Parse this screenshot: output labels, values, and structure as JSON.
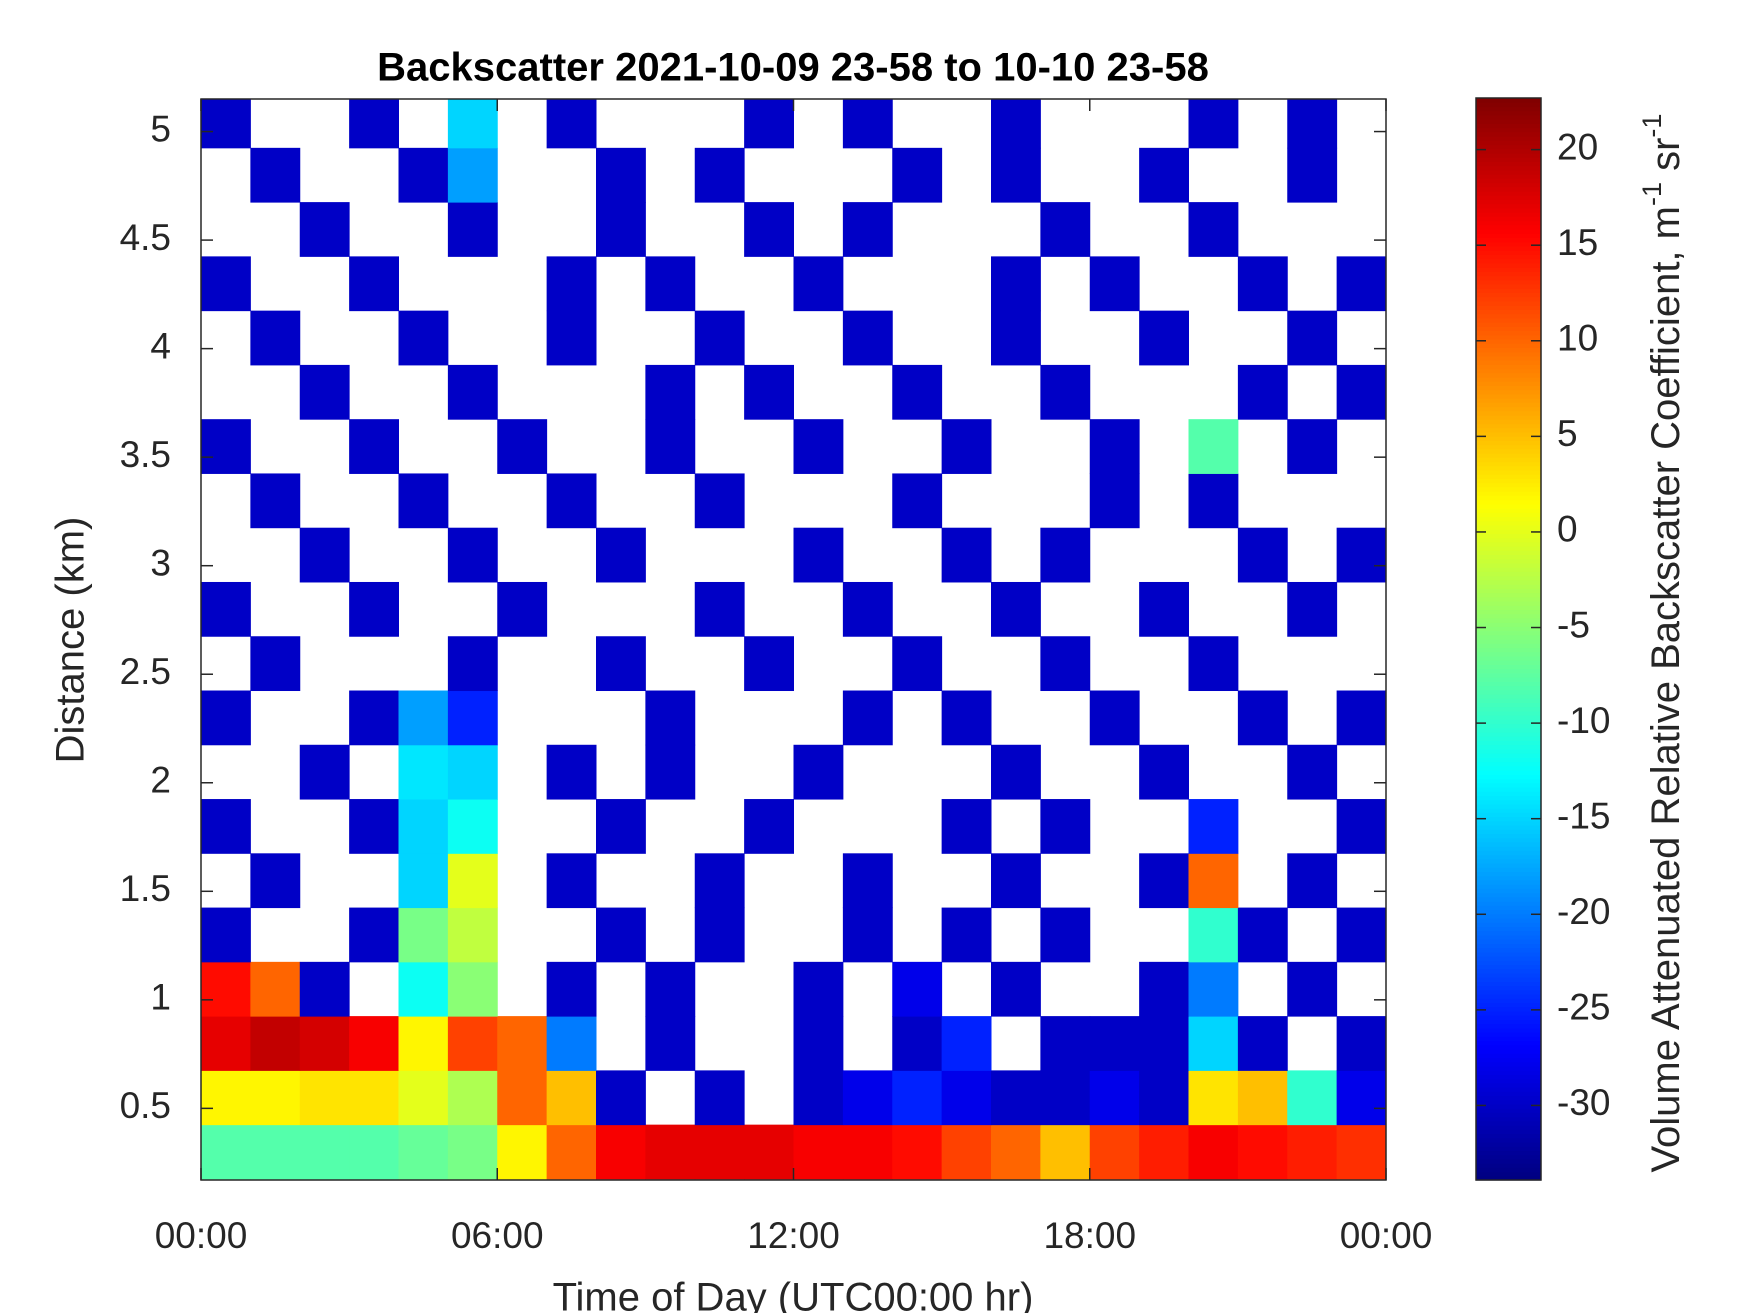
{
  "chart_data": {
    "type": "heatmap",
    "title": "Backscatter 2021-10-09 23-58 to 10-10 23-58",
    "xlabel": "Time of Day (UTC00:00 hr)",
    "ylabel": "Distance (km)",
    "colorbar_label": [
      "Volume Attenuated Relative Backscatter Coefficient, m",
      "-1",
      " sr",
      "-1"
    ],
    "colormap": "jet",
    "x": [
      0.5,
      1.5,
      2.5,
      3.5,
      4.5,
      5.5,
      6.5,
      7.5,
      8.5,
      9.5,
      10.5,
      11.5,
      12.5,
      13.5,
      14.5,
      15.5,
      16.5,
      17.5,
      18.5,
      19.5,
      20.5,
      21.5,
      22.5,
      23.5
    ],
    "y": [
      0.3,
      0.55,
      0.8,
      1.05,
      1.3,
      1.55,
      1.8,
      2.05,
      2.3,
      2.55,
      2.8,
      3.05,
      3.3,
      3.55,
      3.8,
      4.05,
      4.3,
      4.55,
      4.8,
      5.05
    ],
    "z": [
      [
        -8,
        -8,
        -8,
        -8,
        -7,
        -6,
        2,
        10,
        16,
        17,
        17,
        17,
        16,
        16,
        15,
        12,
        10,
        5,
        12,
        14,
        16,
        15,
        14,
        13
      ],
      [
        2,
        2,
        3,
        3,
        0,
        -3,
        10,
        5,
        -30,
        null,
        -30,
        null,
        -30,
        -28,
        -25,
        -28,
        -30,
        -30,
        -28,
        -30,
        3,
        5,
        -10,
        -28
      ],
      [
        17,
        19,
        18,
        16,
        2,
        12,
        10,
        -20,
        null,
        -30,
        null,
        null,
        -30,
        null,
        -30,
        -25,
        null,
        -30,
        -30,
        -30,
        -15,
        -30,
        null,
        -30
      ],
      [
        15,
        10,
        -30,
        null,
        -12,
        -5,
        null,
        -30,
        null,
        -30,
        null,
        null,
        -30,
        null,
        -28,
        null,
        -30,
        null,
        null,
        -30,
        -20,
        null,
        -30,
        null
      ],
      [
        -30,
        null,
        null,
        -30,
        -6,
        -2,
        null,
        null,
        -30,
        null,
        -30,
        null,
        null,
        -30,
        null,
        -30,
        null,
        -30,
        null,
        null,
        -10,
        -30,
        null,
        -30
      ],
      [
        null,
        -30,
        null,
        null,
        -15,
        0,
        null,
        -30,
        null,
        null,
        -30,
        null,
        null,
        -30,
        null,
        null,
        -30,
        null,
        null,
        -30,
        10,
        null,
        -30,
        null
      ],
      [
        -30,
        null,
        null,
        -30,
        -15,
        -12,
        null,
        null,
        -30,
        null,
        null,
        -30,
        null,
        null,
        null,
        -30,
        null,
        -30,
        null,
        null,
        -25,
        null,
        null,
        -30
      ],
      [
        null,
        null,
        -30,
        null,
        -14,
        -15,
        null,
        -30,
        null,
        -30,
        null,
        null,
        -30,
        null,
        null,
        null,
        -30,
        null,
        null,
        -30,
        null,
        null,
        -30,
        null
      ],
      [
        -30,
        null,
        null,
        -30,
        -18,
        -25,
        null,
        null,
        null,
        -30,
        null,
        null,
        null,
        -30,
        null,
        -30,
        null,
        null,
        -30,
        null,
        null,
        -30,
        null,
        -30
      ],
      [
        null,
        -30,
        null,
        null,
        null,
        -30,
        null,
        null,
        -30,
        null,
        null,
        -30,
        null,
        null,
        -30,
        null,
        null,
        -30,
        null,
        null,
        -30,
        null,
        null,
        null
      ],
      [
        -30,
        null,
        null,
        -30,
        null,
        null,
        -30,
        null,
        null,
        null,
        -30,
        null,
        null,
        -30,
        null,
        null,
        -30,
        null,
        null,
        -30,
        null,
        null,
        -30,
        null
      ],
      [
        null,
        null,
        -30,
        null,
        null,
        -30,
        null,
        null,
        -30,
        null,
        null,
        null,
        -30,
        null,
        null,
        -30,
        null,
        -30,
        null,
        null,
        null,
        -30,
        null,
        -30
      ],
      [
        null,
        -30,
        null,
        null,
        -30,
        null,
        null,
        -30,
        null,
        null,
        -30,
        null,
        null,
        null,
        -30,
        null,
        null,
        null,
        -30,
        null,
        -30,
        null,
        null,
        null
      ],
      [
        -30,
        null,
        null,
        -30,
        null,
        null,
        -30,
        null,
        null,
        -30,
        null,
        null,
        -30,
        null,
        null,
        -30,
        null,
        null,
        -30,
        null,
        -8,
        null,
        -30,
        null
      ],
      [
        null,
        null,
        -30,
        null,
        null,
        -30,
        null,
        null,
        null,
        -30,
        null,
        -30,
        null,
        null,
        -30,
        null,
        null,
        -30,
        null,
        null,
        null,
        -30,
        null,
        -30
      ],
      [
        null,
        -30,
        null,
        null,
        -30,
        null,
        null,
        -30,
        null,
        null,
        -30,
        null,
        null,
        -30,
        null,
        null,
        -30,
        null,
        null,
        -30,
        null,
        null,
        -30,
        null
      ],
      [
        -30,
        null,
        null,
        -30,
        null,
        null,
        null,
        -30,
        null,
        -30,
        null,
        null,
        -30,
        null,
        null,
        null,
        -30,
        null,
        -30,
        null,
        null,
        -30,
        null,
        -30
      ],
      [
        null,
        null,
        -30,
        null,
        null,
        -30,
        null,
        null,
        -30,
        null,
        null,
        -30,
        null,
        -30,
        null,
        null,
        null,
        -30,
        null,
        null,
        -30,
        null,
        null,
        null
      ],
      [
        null,
        -30,
        null,
        null,
        -30,
        -18,
        null,
        null,
        -30,
        null,
        -30,
        null,
        null,
        null,
        -30,
        null,
        -30,
        null,
        null,
        -30,
        null,
        null,
        -30,
        null
      ],
      [
        -30,
        null,
        null,
        -30,
        null,
        -15,
        null,
        -30,
        null,
        null,
        null,
        -30,
        null,
        -30,
        null,
        null,
        -30,
        null,
        null,
        null,
        -30,
        null,
        -30,
        null
      ]
    ],
    "xlim": [
      0,
      24
    ],
    "xticks": [
      {
        "value": 0,
        "label": "00:00"
      },
      {
        "value": 6,
        "label": "06:00"
      },
      {
        "value": 12,
        "label": "12:00"
      },
      {
        "value": 18,
        "label": "18:00"
      },
      {
        "value": 24,
        "label": "00:00"
      }
    ],
    "ylim": [
      0.17,
      5.15
    ],
    "yticks": [
      0.5,
      1,
      1.5,
      2,
      2.5,
      3,
      3.5,
      4,
      4.5,
      5
    ],
    "clim": [
      -33.9,
      22.7
    ],
    "cticks": [
      -30,
      -25,
      -20,
      -15,
      -10,
      -5,
      0,
      5,
      10,
      15,
      20
    ]
  }
}
